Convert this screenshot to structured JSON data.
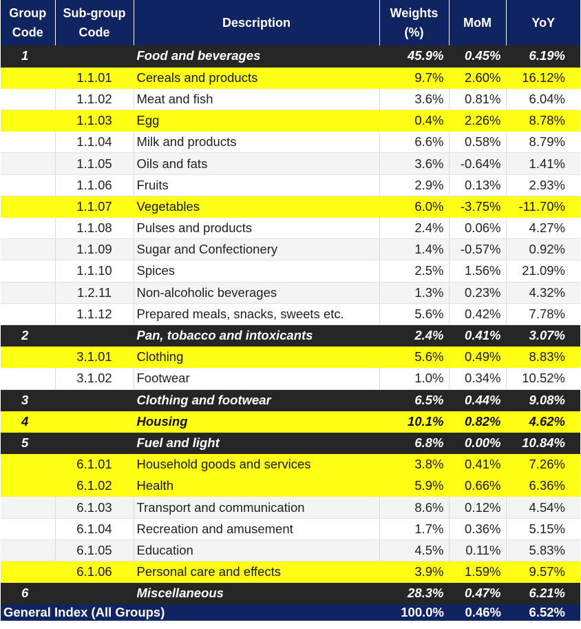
{
  "headers": {
    "group_code": "Group Code",
    "subgroup_code": "Sub-group Code",
    "description": "Description",
    "weights": "Weights (%)",
    "mom": "MoM",
    "yoy": "YoY"
  },
  "rows": [
    {
      "type": "group-dark",
      "group": "1",
      "sub": "",
      "desc": "Food and beverages",
      "weight": "45.9%",
      "mom": "0.45%",
      "yoy": "6.19%"
    },
    {
      "type": "row-yellow",
      "group": "",
      "sub": "1.1.01",
      "desc": "Cereals and products",
      "weight": "9.7%",
      "mom": "2.60%",
      "yoy": "16.12%"
    },
    {
      "type": "row-white",
      "group": "",
      "sub": "1.1.02",
      "desc": "Meat and fish",
      "weight": "3.6%",
      "mom": "0.81%",
      "yoy": "6.04%"
    },
    {
      "type": "row-yellow",
      "group": "",
      "sub": "1.1.03",
      "desc": "Egg",
      "weight": "0.4%",
      "mom": "2.26%",
      "yoy": "8.78%"
    },
    {
      "type": "row-white",
      "group": "",
      "sub": "1.1.04",
      "desc": "Milk and products",
      "weight": "6.6%",
      "mom": "0.58%",
      "yoy": "8.79%"
    },
    {
      "type": "row-gray",
      "group": "",
      "sub": "1.1.05",
      "desc": "Oils and fats",
      "weight": "3.6%",
      "mom": "-0.64%",
      "yoy": "1.41%"
    },
    {
      "type": "row-white",
      "group": "",
      "sub": "1.1.06",
      "desc": "Fruits",
      "weight": "2.9%",
      "mom": "0.13%",
      "yoy": "2.93%"
    },
    {
      "type": "row-yellow",
      "group": "",
      "sub": "1.1.07",
      "desc": "Vegetables",
      "weight": "6.0%",
      "mom": "-3.75%",
      "yoy": "-11.70%"
    },
    {
      "type": "row-white",
      "group": "",
      "sub": "1.1.08",
      "desc": "Pulses and products",
      "weight": "2.4%",
      "mom": "0.06%",
      "yoy": "4.27%"
    },
    {
      "type": "row-gray",
      "group": "",
      "sub": "1.1.09",
      "desc": "Sugar and Confectionery",
      "weight": "1.4%",
      "mom": "-0.57%",
      "yoy": "0.92%"
    },
    {
      "type": "row-white",
      "group": "",
      "sub": "1.1.10",
      "desc": "Spices",
      "weight": "2.5%",
      "mom": "1.56%",
      "yoy": "21.09%"
    },
    {
      "type": "row-gray",
      "group": "",
      "sub": "1.2.11",
      "desc": "Non-alcoholic beverages",
      "weight": "1.3%",
      "mom": "0.23%",
      "yoy": "4.32%"
    },
    {
      "type": "row-white",
      "group": "",
      "sub": "1.1.12",
      "desc": "Prepared meals, snacks, sweets etc.",
      "weight": "5.6%",
      "mom": "0.42%",
      "yoy": "7.78%"
    },
    {
      "type": "group-dark",
      "group": "2",
      "sub": "",
      "desc": "Pan, tobacco and intoxicants",
      "weight": "2.4%",
      "mom": "0.41%",
      "yoy": "3.07%"
    },
    {
      "type": "row-yellow",
      "group": "",
      "sub": "3.1.01",
      "desc": "Clothing",
      "weight": "5.6%",
      "mom": "0.49%",
      "yoy": "8.83%"
    },
    {
      "type": "row-white",
      "group": "",
      "sub": "3.1.02",
      "desc": "Footwear",
      "weight": "1.0%",
      "mom": "0.34%",
      "yoy": "10.52%"
    },
    {
      "type": "group-dark",
      "group": "3",
      "sub": "",
      "desc": "Clothing and footwear",
      "weight": "6.5%",
      "mom": "0.44%",
      "yoy": "9.08%"
    },
    {
      "type": "group-yellow",
      "group": "4",
      "sub": "",
      "desc": "Housing",
      "weight": "10.1%",
      "mom": "0.82%",
      "yoy": "4.62%"
    },
    {
      "type": "group-dark",
      "group": "5",
      "sub": "",
      "desc": "Fuel and light",
      "weight": "6.8%",
      "mom": "0.00%",
      "yoy": "10.84%"
    },
    {
      "type": "row-yellow",
      "group": "",
      "sub": "6.1.01",
      "desc": "Household goods and services",
      "weight": "3.8%",
      "mom": "0.41%",
      "yoy": "7.26%"
    },
    {
      "type": "row-yellow",
      "group": "",
      "sub": "6.1.02",
      "desc": "Health",
      "weight": "5.9%",
      "mom": "0.66%",
      "yoy": "6.36%"
    },
    {
      "type": "row-gray",
      "group": "",
      "sub": "6.1.03",
      "desc": "Transport and communication",
      "weight": "8.6%",
      "mom": "0.12%",
      "yoy": "4.54%"
    },
    {
      "type": "row-white",
      "group": "",
      "sub": "6.1.04",
      "desc": "Recreation and amusement",
      "weight": "1.7%",
      "mom": "0.36%",
      "yoy": "5.15%"
    },
    {
      "type": "row-gray",
      "group": "",
      "sub": "6.1.05",
      "desc": "Education",
      "weight": "4.5%",
      "mom": "0.11%",
      "yoy": "5.83%"
    },
    {
      "type": "row-yellow",
      "group": "",
      "sub": "6.1.06",
      "desc": "Personal care and effects",
      "weight": "3.9%",
      "mom": "1.59%",
      "yoy": "9.57%"
    },
    {
      "type": "group-dark",
      "group": "6",
      "sub": "",
      "desc": "Miscellaneous",
      "weight": "28.3%",
      "mom": "0.47%",
      "yoy": "6.21%"
    }
  ],
  "footer": {
    "label": "General Index (All Groups)",
    "weight": "100.0%",
    "mom": "0.46%",
    "yoy": "6.52%"
  },
  "colors": {
    "header_bg": "#0f2461",
    "highlight_yellow": "#ffff14",
    "group_dark": "#262626",
    "row_gray": "#f4f4f4"
  }
}
